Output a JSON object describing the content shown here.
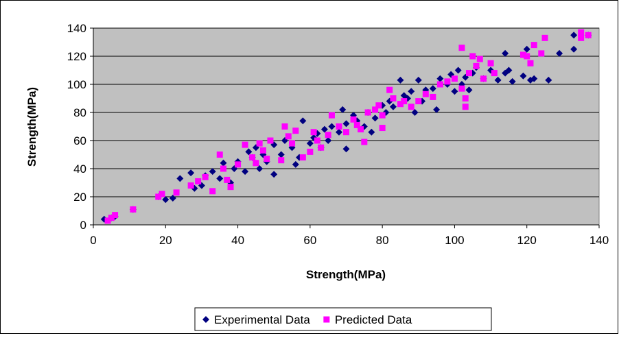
{
  "chart_data": {
    "type": "scatter",
    "xlabel": "Strength(MPa)",
    "ylabel": "Strength(MPa)",
    "xlim": [
      0,
      140
    ],
    "ylim": [
      0,
      140
    ],
    "xticks": [
      0,
      20,
      40,
      60,
      80,
      100,
      120,
      140
    ],
    "yticks": [
      0,
      20,
      40,
      60,
      80,
      100,
      120,
      140
    ],
    "grid": true,
    "legend": "bottom",
    "series": [
      {
        "name": "Experimental Data",
        "color": "#000080",
        "marker": "diamond",
        "x": [
          3,
          5,
          6,
          11,
          18,
          20,
          22,
          24,
          27,
          28,
          30,
          31,
          33,
          35,
          36,
          38,
          39,
          40,
          42,
          43,
          44,
          45,
          46,
          47,
          48,
          50,
          50,
          52,
          53,
          55,
          56,
          57,
          58,
          60,
          61,
          62,
          63,
          64,
          65,
          66,
          68,
          69,
          70,
          70,
          72,
          73,
          75,
          76,
          77,
          78,
          80,
          81,
          82,
          83,
          85,
          86,
          87,
          88,
          89,
          90,
          91,
          92,
          94,
          95,
          96,
          98,
          99,
          100,
          101,
          102,
          103,
          104,
          105,
          106,
          108,
          110,
          112,
          114,
          114,
          115,
          116,
          119,
          120,
          121,
          122,
          126,
          129,
          133,
          133,
          137
        ],
        "y": [
          4,
          5,
          6,
          11,
          20,
          18,
          19,
          33,
          37,
          26,
          28,
          35,
          38,
          33,
          44,
          30,
          40,
          45,
          38,
          52,
          48,
          55,
          40,
          50,
          45,
          36,
          57,
          50,
          60,
          55,
          43,
          48,
          74,
          58,
          62,
          65,
          55,
          68,
          60,
          70,
          66,
          82,
          54,
          72,
          78,
          74,
          70,
          80,
          66,
          76,
          85,
          80,
          88,
          84,
          103,
          92,
          90,
          95,
          80,
          103,
          88,
          96,
          97,
          82,
          104,
          100,
          107,
          95,
          110,
          100,
          105,
          96,
          108,
          112,
          104,
          110,
          103,
          122,
          108,
          110,
          102,
          106,
          125,
          103,
          104,
          103,
          122,
          125,
          135,
          135
        ]
      },
      {
        "name": "Predicted Data",
        "color": "#ff00ff",
        "marker": "square",
        "x": [
          4,
          5,
          6,
          11,
          18,
          19,
          23,
          27,
          29,
          31,
          33,
          35,
          36,
          37,
          38,
          40,
          42,
          44,
          45,
          46,
          47,
          48,
          49,
          52,
          53,
          54,
          55,
          56,
          58,
          60,
          61,
          62,
          63,
          65,
          66,
          68,
          70,
          72,
          73,
          74,
          75,
          76,
          78,
          79,
          80,
          80,
          82,
          83,
          85,
          86,
          88,
          90,
          92,
          94,
          96,
          98,
          100,
          102,
          102,
          103,
          103,
          104,
          105,
          106,
          107,
          108,
          110,
          111,
          119,
          120,
          121,
          122,
          124,
          125,
          135,
          135,
          137
        ],
        "y": [
          3,
          5,
          7,
          11,
          20,
          22,
          23,
          28,
          31,
          34,
          24,
          50,
          40,
          32,
          27,
          43,
          57,
          48,
          44,
          58,
          53,
          47,
          60,
          46,
          70,
          63,
          58,
          67,
          48,
          52,
          66,
          60,
          55,
          64,
          78,
          70,
          66,
          75,
          71,
          68,
          59,
          80,
          82,
          85,
          69,
          78,
          96,
          90,
          86,
          88,
          84,
          88,
          93,
          91,
          100,
          102,
          104,
          126,
          97,
          84,
          90,
          108,
          120,
          113,
          118,
          104,
          115,
          108,
          121,
          120,
          115,
          128,
          122,
          133,
          137,
          133,
          135
        ]
      }
    ]
  }
}
